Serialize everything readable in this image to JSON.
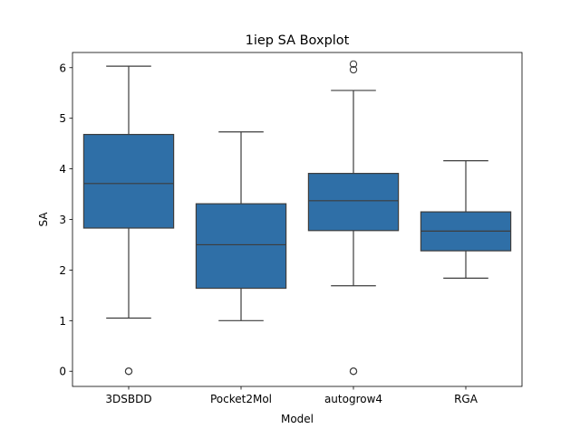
{
  "chart_data": {
    "type": "box",
    "title": "1iep SA Boxplot",
    "xlabel": "Model",
    "ylabel": "SA",
    "ylim": [
      -0.3,
      6.3
    ],
    "yticks": [
      0,
      1,
      2,
      3,
      4,
      5,
      6
    ],
    "grid": false,
    "color": "#2f6fa7",
    "line_color": "#3d3d3d",
    "categories": [
      "3DSBDD",
      "Pocket2Mol",
      "autogrow4",
      "RGA"
    ],
    "boxes": [
      {
        "category": "3DSBDD",
        "whisker_low": 1.05,
        "q1": 2.83,
        "median": 3.71,
        "q3": 4.68,
        "whisker_high": 6.03,
        "outliers": [
          0.0,
          0.0
        ]
      },
      {
        "category": "Pocket2Mol",
        "whisker_low": 1.0,
        "q1": 1.64,
        "median": 2.5,
        "q3": 3.31,
        "whisker_high": 4.73,
        "outliers": []
      },
      {
        "category": "autogrow4",
        "whisker_low": 1.69,
        "q1": 2.78,
        "median": 3.37,
        "q3": 3.91,
        "whisker_high": 5.55,
        "outliers": [
          6.07,
          5.96,
          0.0,
          0.0
        ]
      },
      {
        "category": "RGA",
        "whisker_low": 1.84,
        "q1": 2.38,
        "median": 2.77,
        "q3": 3.15,
        "whisker_high": 4.16,
        "outliers": []
      }
    ]
  }
}
